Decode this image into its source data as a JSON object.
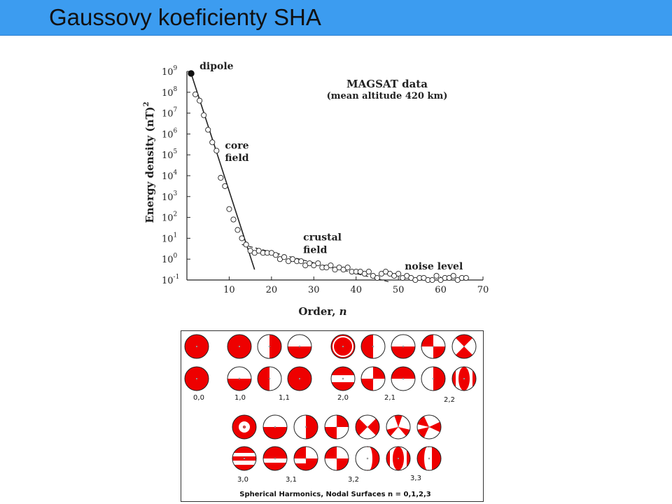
{
  "slide": {
    "title": "Gaussovy koeficienty SHA"
  },
  "chart_data": {
    "type": "scatter",
    "annotation_main": "MAGSAT data",
    "annotation_sub": "(mean altitude 420 km)",
    "xlabel": "Order, n",
    "ylabel": "Energy density (nT)²",
    "ylabel_base": "Energy density (nT)",
    "ylabel_sup": "2",
    "xlim": [
      0,
      70
    ],
    "ylim_log10": [
      -1,
      9
    ],
    "x_ticks": [
      "10",
      "20",
      "30",
      "40",
      "50",
      "60",
      "70"
    ],
    "x_tick_values": [
      10,
      20,
      30,
      40,
      50,
      60,
      70
    ],
    "y_ticks": [
      {
        "exp": -1,
        "base": "10",
        "sup": "-1"
      },
      {
        "exp": 0,
        "base": "10",
        "sup": "0"
      },
      {
        "exp": 1,
        "base": "10",
        "sup": "1"
      },
      {
        "exp": 2,
        "base": "10",
        "sup": "2"
      },
      {
        "exp": 3,
        "base": "10",
        "sup": "3"
      },
      {
        "exp": 4,
        "base": "10",
        "sup": "4"
      },
      {
        "exp": 5,
        "base": "10",
        "sup": "5"
      },
      {
        "exp": 6,
        "base": "10",
        "sup": "6"
      },
      {
        "exp": 7,
        "base": "10",
        "sup": "7"
      },
      {
        "exp": 8,
        "base": "10",
        "sup": "8"
      },
      {
        "exp": 9,
        "base": "10",
        "sup": "9"
      }
    ],
    "labels": [
      {
        "text": "dipole",
        "n": 3.0,
        "log10": 9.1
      },
      {
        "text": "core",
        "n": 9.0,
        "log10": 5.3
      },
      {
        "text": "field",
        "n": 9.0,
        "log10": 4.7
      },
      {
        "text": "crustal",
        "n": 27.5,
        "log10": 0.9
      },
      {
        "text": "field",
        "n": 27.5,
        "log10": 0.3
      },
      {
        "text": "noise level",
        "n": 51.5,
        "log10": -0.5
      }
    ],
    "dipole_point": {
      "n": 1,
      "log10": 8.9
    },
    "points": [
      {
        "n": 2,
        "log10": 7.9
      },
      {
        "n": 3,
        "log10": 7.6
      },
      {
        "n": 4,
        "log10": 6.9
      },
      {
        "n": 5,
        "log10": 6.2
      },
      {
        "n": 6,
        "log10": 5.6
      },
      {
        "n": 7,
        "log10": 5.2
      },
      {
        "n": 8,
        "log10": 3.9
      },
      {
        "n": 9,
        "log10": 3.5
      },
      {
        "n": 10,
        "log10": 2.4
      },
      {
        "n": 11,
        "log10": 1.9
      },
      {
        "n": 12,
        "log10": 1.4
      },
      {
        "n": 13,
        "log10": 1.0
      },
      {
        "n": 14,
        "log10": 0.7
      },
      {
        "n": 15,
        "log10": 0.4
      },
      {
        "n": 16,
        "log10": 0.3
      },
      {
        "n": 17,
        "log10": 0.4
      },
      {
        "n": 18,
        "log10": 0.3
      },
      {
        "n": 19,
        "log10": 0.3
      },
      {
        "n": 20,
        "log10": 0.3
      },
      {
        "n": 21,
        "log10": 0.2
      },
      {
        "n": 22,
        "log10": 0.0
      },
      {
        "n": 23,
        "log10": 0.1
      },
      {
        "n": 24,
        "log10": -0.1
      },
      {
        "n": 25,
        "log10": 0.0
      },
      {
        "n": 26,
        "log10": -0.1
      },
      {
        "n": 27,
        "log10": -0.1
      },
      {
        "n": 28,
        "log10": -0.3
      },
      {
        "n": 29,
        "log10": -0.2
      },
      {
        "n": 30,
        "log10": -0.3
      },
      {
        "n": 31,
        "log10": -0.2
      },
      {
        "n": 32,
        "log10": -0.4
      },
      {
        "n": 33,
        "log10": -0.4
      },
      {
        "n": 34,
        "log10": -0.3
      },
      {
        "n": 35,
        "log10": -0.5
      },
      {
        "n": 36,
        "log10": -0.4
      },
      {
        "n": 37,
        "log10": -0.5
      },
      {
        "n": 38,
        "log10": -0.4
      },
      {
        "n": 39,
        "log10": -0.6
      },
      {
        "n": 40,
        "log10": -0.6
      },
      {
        "n": 41,
        "log10": -0.6
      },
      {
        "n": 42,
        "log10": -0.7
      },
      {
        "n": 43,
        "log10": -0.6
      },
      {
        "n": 44,
        "log10": -0.8
      },
      {
        "n": 45,
        "log10": -0.9
      },
      {
        "n": 46,
        "log10": -0.7
      },
      {
        "n": 47,
        "log10": -0.6
      },
      {
        "n": 48,
        "log10": -0.7
      },
      {
        "n": 49,
        "log10": -0.8
      },
      {
        "n": 50,
        "log10": -0.7
      },
      {
        "n": 51,
        "log10": -0.9
      },
      {
        "n": 52,
        "log10": -0.8
      },
      {
        "n": 53,
        "log10": -0.9
      },
      {
        "n": 54,
        "log10": -1.0
      },
      {
        "n": 55,
        "log10": -0.9
      },
      {
        "n": 56,
        "log10": -0.9
      },
      {
        "n": 57,
        "log10": -1.0
      },
      {
        "n": 58,
        "log10": -1.0
      },
      {
        "n": 59,
        "log10": -0.8
      },
      {
        "n": 60,
        "log10": -1.0
      },
      {
        "n": 61,
        "log10": -0.9
      },
      {
        "n": 62,
        "log10": -0.9
      },
      {
        "n": 63,
        "log10": -0.8
      },
      {
        "n": 64,
        "log10": -1.0
      },
      {
        "n": 65,
        "log10": -0.9
      },
      {
        "n": 66,
        "log10": -0.9
      }
    ],
    "core_fit_line": [
      {
        "n": 1,
        "log10": 8.9
      },
      {
        "n": 16,
        "log10": -0.5
      }
    ],
    "crustal_fit_line": [
      {
        "n": 13,
        "log10": 0.7
      },
      {
        "n": 48,
        "log10": -1.1
      }
    ]
  },
  "harmonics": {
    "caption": "Spherical Harmonics, Nodal Surfaces n = 0,1,2,3",
    "fill_color": "#ee0000",
    "groups": [
      {
        "label": "0,0"
      },
      {
        "label": "1,0"
      },
      {
        "label": "1,1"
      },
      {
        "label": "2,0"
      },
      {
        "label": "2,1"
      },
      {
        "label": "2,2"
      },
      {
        "label": "3,0"
      },
      {
        "label": "3,1"
      },
      {
        "label": "3,2"
      },
      {
        "label": "3,3"
      }
    ]
  }
}
